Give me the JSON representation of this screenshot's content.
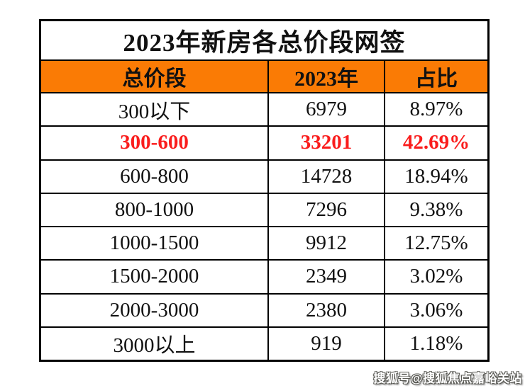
{
  "chart_data": {
    "type": "table",
    "title": "2023年新房各总价段网签",
    "columns": [
      "总价段",
      "2023年",
      "占比"
    ],
    "rows": [
      {
        "range": "300以下",
        "count": "6979",
        "share": "8.97%",
        "highlight": false
      },
      {
        "range": "300-600",
        "count": "33201",
        "share": "42.69%",
        "highlight": true
      },
      {
        "range": "600-800",
        "count": "14728",
        "share": "18.94%",
        "highlight": false
      },
      {
        "range": "800-1000",
        "count": "7296",
        "share": "9.38%",
        "highlight": false
      },
      {
        "range": "1000-1500",
        "count": "9912",
        "share": "12.75%",
        "highlight": false
      },
      {
        "range": "1500-2000",
        "count": "2349",
        "share": "3.02%",
        "highlight": false
      },
      {
        "range": "2000-3000",
        "count": "2380",
        "share": "3.06%",
        "highlight": false
      },
      {
        "range": "3000以上",
        "count": "919",
        "share": "1.18%",
        "highlight": false
      }
    ]
  },
  "table": {
    "title": "2023年新房各总价段网签",
    "columns": {
      "range": "总价段",
      "year": "2023年",
      "share": "占比"
    }
  },
  "watermark": {
    "text": "搜狐号@搜狐焦点嘉峪关站"
  },
  "colors": {
    "header_bg": "#fa7b05",
    "highlight_text": "#fa1d1d",
    "border": "#000000",
    "background": "#ffffff"
  }
}
